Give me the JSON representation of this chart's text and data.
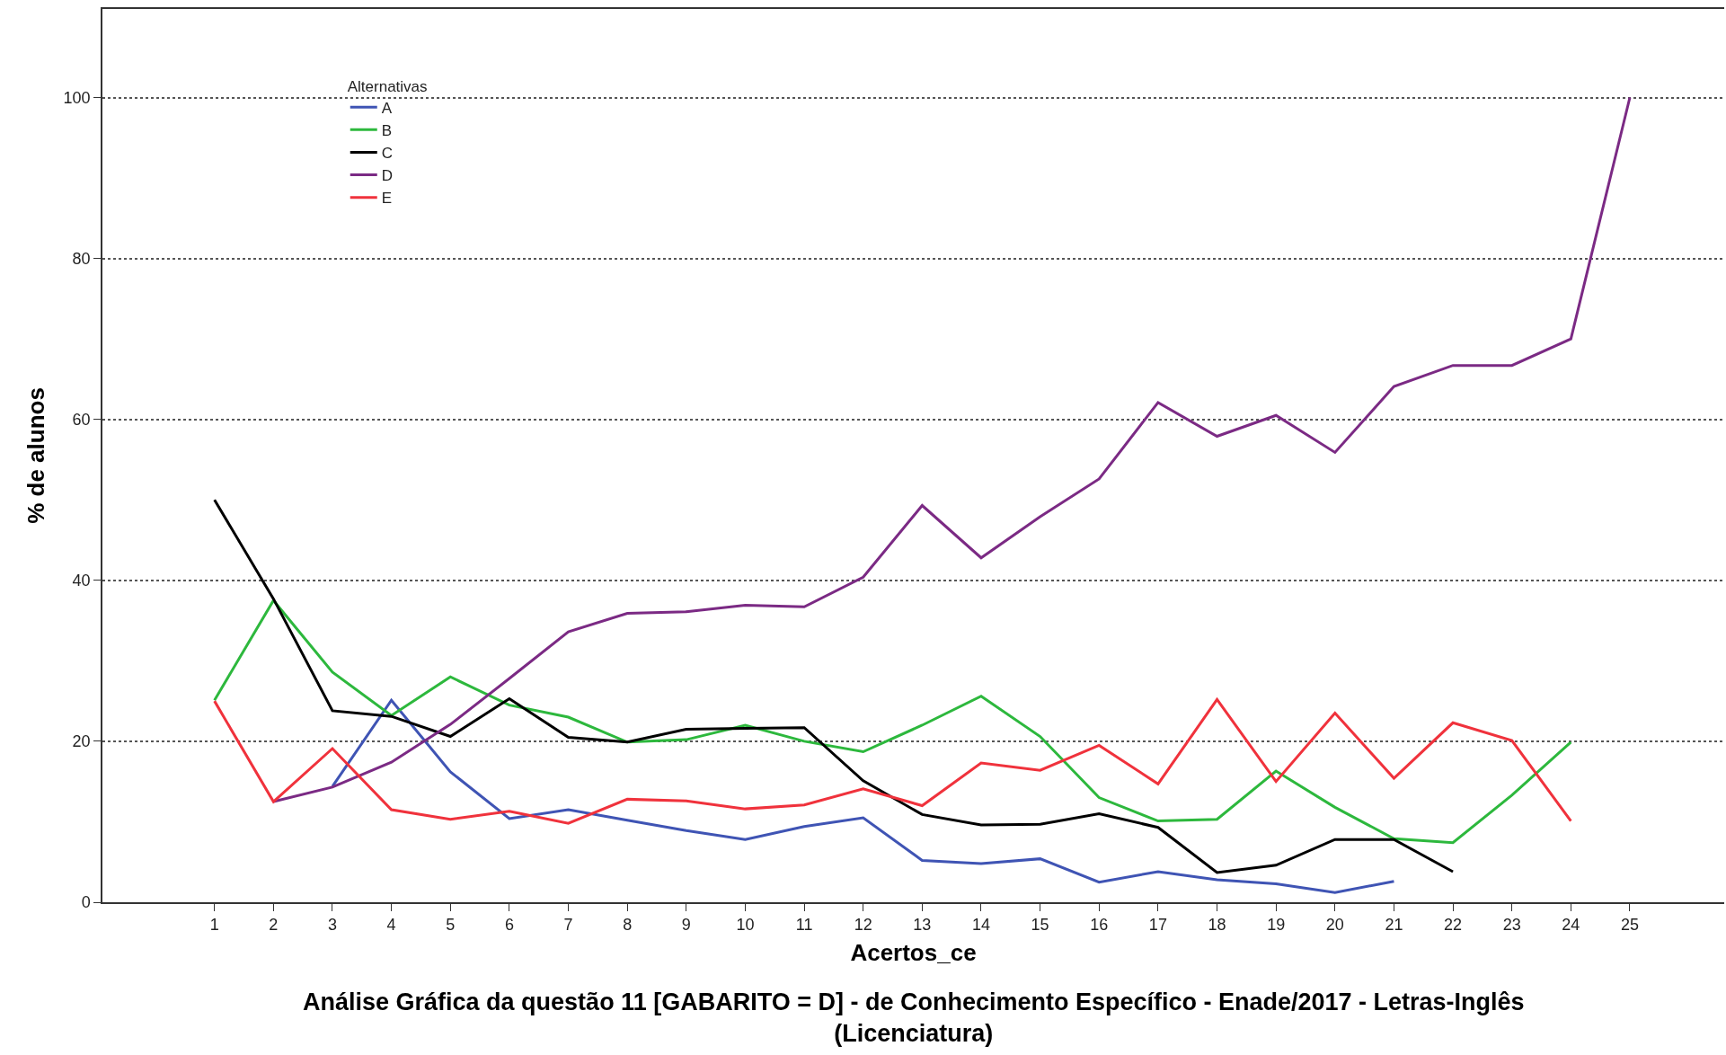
{
  "chart_data": {
    "type": "line",
    "title": "Análise Gráfica da questão 11 [GABARITO = D] - de Conhecimento Específico - Enade/2017 - Letras-Inglês\n(Licenciatura)",
    "xlabel": "Acertos_ce",
    "ylabel": "% de alunos",
    "legend_title": "Alternativas",
    "x": [
      1,
      2,
      3,
      4,
      5,
      6,
      7,
      8,
      9,
      10,
      11,
      12,
      13,
      14,
      15,
      16,
      17,
      18,
      19,
      20,
      21,
      22,
      23,
      24,
      25
    ],
    "series": [
      {
        "name": "A",
        "color": "#3f54b4",
        "values": [
          null,
          null,
          14.4,
          25.1,
          16.2,
          10.4,
          11.5,
          10.2,
          8.9,
          7.8,
          9.4,
          10.5,
          5.2,
          4.8,
          5.4,
          2.5,
          3.8,
          2.8,
          2.3,
          1.2,
          2.6,
          null,
          null,
          null,
          null
        ]
      },
      {
        "name": "B",
        "color": "#2db83d",
        "values": [
          25.1,
          37.5,
          28.6,
          23.2,
          28.0,
          24.5,
          23.0,
          19.9,
          20.2,
          22.0,
          20.0,
          18.7,
          22.0,
          25.6,
          20.6,
          13.0,
          10.1,
          10.3,
          16.3,
          11.8,
          7.9,
          7.4,
          13.3,
          19.9,
          null
        ]
      },
      {
        "name": "C",
        "color": "#000000",
        "values": [
          50.0,
          37.7,
          23.8,
          23.1,
          20.6,
          25.3,
          20.5,
          19.9,
          21.5,
          21.6,
          21.7,
          15.1,
          10.9,
          9.6,
          9.7,
          11.0,
          9.3,
          3.7,
          4.6,
          7.8,
          7.8,
          3.8,
          null,
          null,
          null
        ]
      },
      {
        "name": "D",
        "color": "#7b2a84",
        "values": [
          null,
          12.5,
          14.3,
          17.4,
          22.1,
          27.8,
          33.6,
          35.9,
          36.1,
          36.9,
          36.7,
          40.4,
          49.3,
          42.8,
          47.9,
          52.6,
          62.1,
          57.9,
          60.5,
          55.9,
          64.1,
          66.7,
          66.7,
          70.0,
          100
        ]
      },
      {
        "name": "E",
        "color": "#f0323c",
        "values": [
          25.0,
          12.5,
          19.1,
          11.5,
          10.3,
          11.3,
          9.8,
          12.8,
          12.6,
          11.6,
          12.1,
          14.1,
          12.0,
          17.3,
          16.4,
          19.5,
          14.7,
          25.2,
          15.0,
          23.5,
          15.4,
          22.3,
          20.1,
          10.1,
          null
        ]
      }
    ],
    "xlim": [
      -0.9,
      26.6
    ],
    "xticks": [
      1,
      2,
      3,
      4,
      5,
      6,
      7,
      8,
      9,
      10,
      11,
      12,
      13,
      14,
      15,
      16,
      17,
      18,
      19,
      20,
      21,
      22,
      23,
      24,
      25
    ],
    "ylim": [
      0,
      111
    ],
    "yticks": [
      0,
      20,
      40,
      60,
      80,
      100
    ],
    "grid": "y",
    "legend": "top left",
    "marker": "none",
    "line_style": "solid"
  }
}
